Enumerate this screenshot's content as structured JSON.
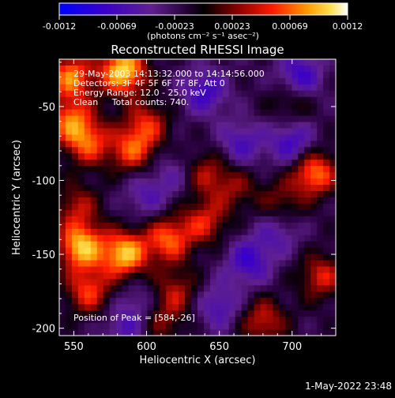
{
  "colorbar": {
    "ticks": [
      "-0.0012",
      "-0.00069",
      "-0.00023",
      "0.00023",
      "0.00069",
      "0.0012"
    ],
    "units": "(photons cm⁻² s⁻¹ asec⁻²)"
  },
  "annotations": {
    "time_range": "29-May-2003 14:13:32.000 to 14:14:56.000",
    "detectors": "Detectors: 3F 4F 5F 6F 7F 8F, Att 0",
    "energy_range": "Energy Range: 12.0 - 25.0 keV",
    "clean_counts": "Clean     Total counts: 740.",
    "peak_position": "Position of Peak = [584,-26]"
  },
  "footer": {
    "timestamp": "1-May-2022 23:48"
  },
  "chart_data": {
    "type": "heatmap",
    "title": "Reconstructed RHESSI Image",
    "xlabel": "Heliocentric X (arcsec)",
    "ylabel": "Heliocentric Y (arcsec)",
    "xlim": [
      540,
      730
    ],
    "ylim": [
      -205,
      -18
    ],
    "x_ticks": [
      550,
      600,
      650,
      700
    ],
    "y_ticks": [
      -50,
      -100,
      -150,
      -200
    ],
    "color_range": [
      -0.0012,
      0.0012
    ],
    "colors": {
      "low": "#0000ff",
      "mid": "#000000",
      "high": "#ffffff",
      "accent": "#ff0000"
    },
    "sources": [
      {
        "x": 584,
        "y": -26,
        "value": 0.0012
      },
      {
        "x": 548,
        "y": -30,
        "value": 0.0009
      },
      {
        "x": 548,
        "y": -60,
        "value": 0.0008
      },
      {
        "x": 560,
        "y": -75,
        "value": 0.0007
      },
      {
        "x": 590,
        "y": -80,
        "value": 0.0007
      },
      {
        "x": 600,
        "y": -62,
        "value": 0.0006
      },
      {
        "x": 640,
        "y": -95,
        "value": 0.0005
      },
      {
        "x": 660,
        "y": -105,
        "value": 0.0004
      },
      {
        "x": 715,
        "y": -95,
        "value": 0.0009
      },
      {
        "x": 700,
        "y": -45,
        "value": 0.0004
      },
      {
        "x": 692,
        "y": -115,
        "value": 0.0004
      },
      {
        "x": 555,
        "y": -145,
        "value": 0.0011
      },
      {
        "x": 585,
        "y": -150,
        "value": 0.0011
      },
      {
        "x": 615,
        "y": -140,
        "value": 0.0008
      },
      {
        "x": 640,
        "y": -128,
        "value": 0.0006
      },
      {
        "x": 560,
        "y": -175,
        "value": 0.0007
      },
      {
        "x": 620,
        "y": -175,
        "value": 0.0005
      },
      {
        "x": 680,
        "y": -195,
        "value": 0.0006
      },
      {
        "x": 720,
        "y": -165,
        "value": 0.0006
      },
      {
        "x": 610,
        "y": -195,
        "value": 0.0004
      },
      {
        "x": 552,
        "y": -118,
        "value": 0.0005
      }
    ],
    "minima": [
      {
        "x": 705,
        "y": -30,
        "value": -0.0007
      },
      {
        "x": 700,
        "y": -75,
        "value": -0.0006
      },
      {
        "x": 640,
        "y": -40,
        "value": -0.0006
      },
      {
        "x": 665,
        "y": -75,
        "value": -0.0005
      },
      {
        "x": 670,
        "y": -155,
        "value": -0.0006
      },
      {
        "x": 650,
        "y": -185,
        "value": -0.0005
      },
      {
        "x": 600,
        "y": -110,
        "value": -0.0004
      },
      {
        "x": 690,
        "y": -135,
        "value": -0.0004
      },
      {
        "x": 585,
        "y": -200,
        "value": -0.0004
      },
      {
        "x": 595,
        "y": -182,
        "value": -0.0003
      },
      {
        "x": 620,
        "y": -95,
        "value": -0.0003
      }
    ]
  }
}
